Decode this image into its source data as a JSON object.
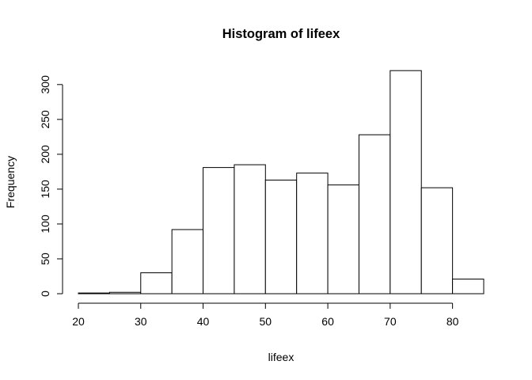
{
  "chart_data": {
    "type": "histogram",
    "title": "Histogram of lifeex",
    "xlabel": "lifeex",
    "ylabel": "Frequency",
    "bins": [
      {
        "from": 20,
        "to": 25,
        "count": 1
      },
      {
        "from": 25,
        "to": 30,
        "count": 2
      },
      {
        "from": 30,
        "to": 35,
        "count": 30
      },
      {
        "from": 35,
        "to": 40,
        "count": 92
      },
      {
        "from": 40,
        "to": 45,
        "count": 181
      },
      {
        "from": 45,
        "to": 50,
        "count": 185
      },
      {
        "from": 50,
        "to": 55,
        "count": 163
      },
      {
        "from": 55,
        "to": 60,
        "count": 173
      },
      {
        "from": 60,
        "to": 65,
        "count": 156
      },
      {
        "from": 65,
        "to": 70,
        "count": 228
      },
      {
        "from": 70,
        "to": 75,
        "count": 320
      },
      {
        "from": 75,
        "to": 80,
        "count": 152
      },
      {
        "from": 80,
        "to": 85,
        "count": 21
      }
    ],
    "x_ticks": [
      20,
      30,
      40,
      50,
      60,
      70,
      80
    ],
    "y_ticks": [
      0,
      50,
      100,
      150,
      200,
      250,
      300
    ],
    "xlim": [
      20,
      85
    ],
    "ylim": [
      0,
      320
    ],
    "grid": false,
    "legend": "none"
  }
}
